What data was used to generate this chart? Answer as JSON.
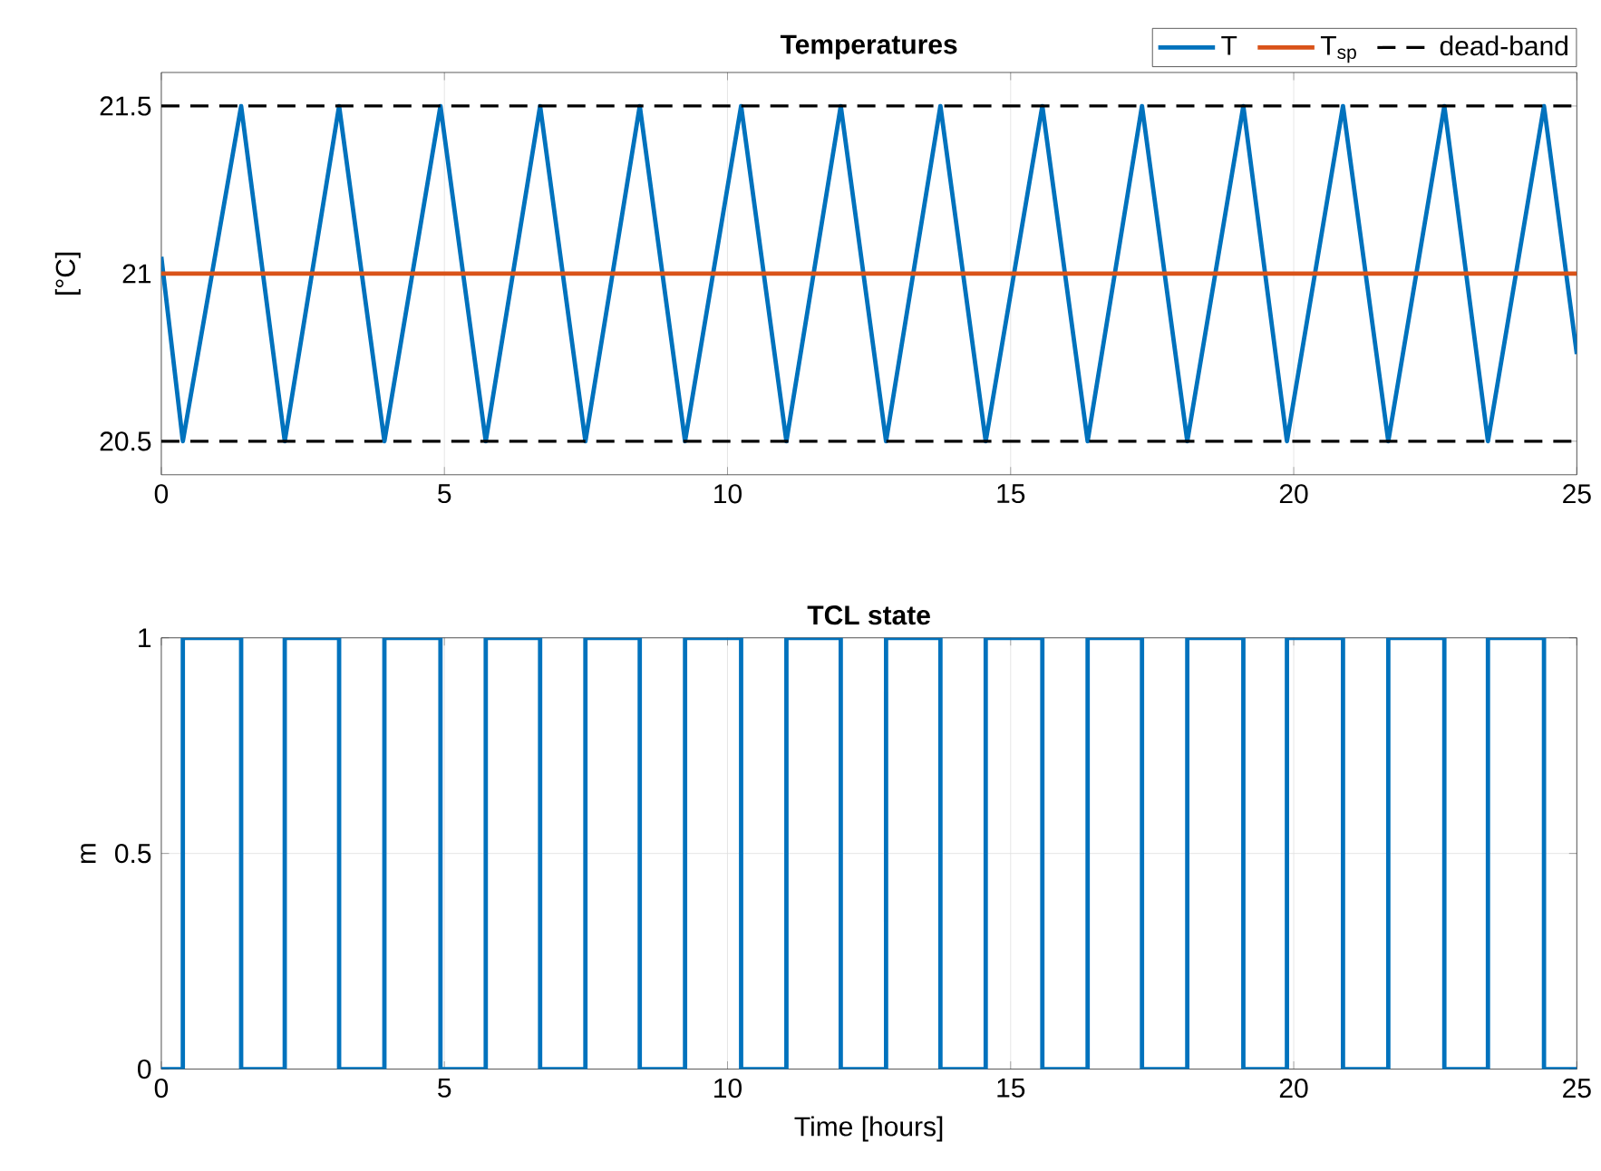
{
  "chart_data": [
    {
      "type": "line",
      "title": "Temperatures",
      "ylabel": "[°C]",
      "xlim": [
        0,
        25
      ],
      "xticks": [
        0,
        5,
        10,
        15,
        20,
        25
      ],
      "ylim": [
        20.4,
        21.6
      ],
      "yticks": [
        20.5,
        21,
        21.5
      ],
      "grid": "x",
      "legend": "top right",
      "series": [
        {
          "name": "T",
          "color": "#0072bd",
          "x": [
            0,
            0.38,
            1.41,
            2.18,
            3.14,
            3.94,
            4.93,
            5.73,
            6.69,
            7.49,
            8.45,
            9.25,
            10.24,
            11.04,
            12.0,
            12.8,
            13.76,
            14.56,
            15.56,
            16.36,
            17.32,
            18.12,
            19.11,
            19.88,
            20.87,
            21.67,
            22.66,
            23.43,
            24.42,
            25
          ],
          "values": [
            21.05,
            20.5,
            21.5,
            20.5,
            21.5,
            20.5,
            21.5,
            20.5,
            21.5,
            20.5,
            21.5,
            20.5,
            21.5,
            20.5,
            21.5,
            20.5,
            21.5,
            20.5,
            21.5,
            20.5,
            21.5,
            20.5,
            21.5,
            20.5,
            21.5,
            20.5,
            21.5,
            20.5,
            21.5,
            20.76
          ]
        },
        {
          "name": "T$_{sp}$",
          "color": "#d95319",
          "x": [
            0,
            25
          ],
          "values": [
            21,
            21
          ]
        }
      ],
      "ref_lines": [
        {
          "axis": "y",
          "value": 21.5,
          "label": "dead-band",
          "color": "#000000",
          "line_style": "dashed"
        },
        {
          "axis": "y",
          "value": 20.5,
          "color": "#000000",
          "line_style": "dashed"
        }
      ]
    },
    {
      "type": "step",
      "title": "TCL state",
      "xlabel": "Time [hours]",
      "ylabel": "m",
      "xlim": [
        0,
        25
      ],
      "xticks": [
        0,
        5,
        10,
        15,
        20,
        25
      ],
      "ylim": [
        0,
        1
      ],
      "yticks": [
        0,
        0.5,
        1
      ],
      "grid": true,
      "series": [
        {
          "color": "#0072bd",
          "x": [
            0,
            0.38,
            1.41,
            2.18,
            3.14,
            3.94,
            4.93,
            5.73,
            6.69,
            7.49,
            8.45,
            9.25,
            10.24,
            11.04,
            12.0,
            12.8,
            13.76,
            14.56,
            15.56,
            16.36,
            17.32,
            18.12,
            19.11,
            19.88,
            20.87,
            21.67,
            22.66,
            23.43,
            24.42,
            25
          ],
          "values": [
            0,
            1,
            0,
            1,
            0,
            1,
            0,
            1,
            0,
            1,
            0,
            1,
            0,
            1,
            0,
            1,
            0,
            1,
            0,
            1,
            0,
            1,
            0,
            1,
            0,
            1,
            0,
            1,
            0,
            0
          ]
        }
      ]
    }
  ]
}
